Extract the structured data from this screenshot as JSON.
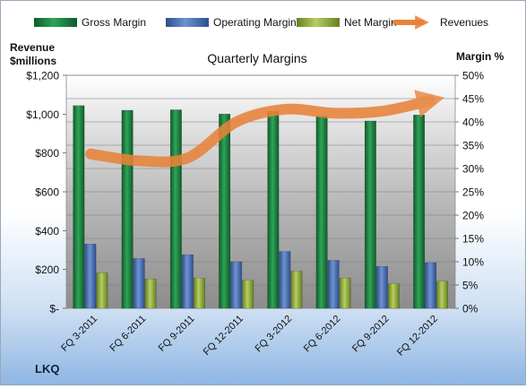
{
  "chart_data": {
    "type": "bar",
    "title": "Quarterly Margins",
    "left_axis_label_line1": "Revenue",
    "left_axis_label_line2": "$millions",
    "right_axis_label": "Margin %",
    "footer": "LKQ",
    "categories": [
      "FQ 3-2011",
      "FQ 6-2011",
      "FQ 9-2011",
      "FQ 12-2011",
      "FQ 3-2012",
      "FQ 6-2012",
      "FQ 9-2012",
      "FQ 12-2012"
    ],
    "y_left": {
      "min": 0,
      "max": 1200,
      "ticks": [
        "$-",
        "$200",
        "$400",
        "$600",
        "$800",
        "$1,000",
        "$1,200"
      ]
    },
    "y_right": {
      "min": 0,
      "max": 50,
      "ticks": [
        "0%",
        "5%",
        "10%",
        "15%",
        "20%",
        "25%",
        "30%",
        "35%",
        "40%",
        "45%",
        "50%"
      ]
    },
    "series": [
      {
        "name": "Gross Margin",
        "axis": "right",
        "chart_type": "bar",
        "color": "#1a7a3c",
        "values": [
          43.5,
          42.5,
          42.6,
          41.7,
          42.3,
          41.3,
          40.2,
          41.5
        ]
      },
      {
        "name": "Operating Margin",
        "axis": "right",
        "chart_type": "bar",
        "color": "#4a6fb3",
        "values": [
          13.8,
          10.7,
          11.5,
          10.0,
          12.2,
          10.3,
          9.0,
          9.8
        ]
      },
      {
        "name": "Net Margin",
        "axis": "right",
        "chart_type": "bar",
        "color": "#8fae3c",
        "values": [
          7.6,
          6.3,
          6.5,
          6.0,
          8.0,
          6.5,
          5.3,
          5.8
        ]
      },
      {
        "name": "Revenues",
        "axis": "left",
        "chart_type": "line",
        "color": "#e8833a",
        "values": [
          795,
          760,
          775,
          960,
          1025,
          1005,
          1015,
          1070
        ]
      }
    ],
    "legend_position": "top",
    "grid": true
  }
}
